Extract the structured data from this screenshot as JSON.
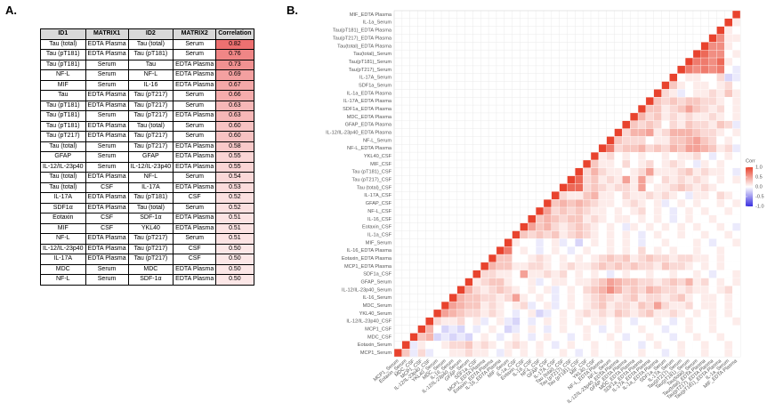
{
  "panel_a": {
    "panel_label": "A.",
    "table": {
      "header": [
        "ID1",
        "MATRIX1",
        "ID2",
        "MATRIX2",
        "Correlation"
      ],
      "rows": [
        [
          "Tau (total)",
          "EDTA Plasma",
          "Tau (total)",
          "Serum",
          "0.82"
        ],
        [
          "Tau (pT181)",
          "EDTA Plasma",
          "Tau (pT181)",
          "Serum",
          "0.76"
        ],
        [
          "Tau (pT181)",
          "Serum",
          "Tau",
          "EDTA Plasma",
          "0.73"
        ],
        [
          "NF-L",
          "Serum",
          "NF-L",
          "EDTA Plasma",
          "0.69"
        ],
        [
          "MIF",
          "Serum",
          "IL-16",
          "EDTA Plasma",
          "0.67"
        ],
        [
          "Tau",
          "EDTA Plasma",
          "Tau (pT217)",
          "Serum",
          "0.66"
        ],
        [
          "Tau (pT181)",
          "EDTA Plasma",
          "Tau (pT217)",
          "Serum",
          "0.63"
        ],
        [
          "Tau (pT181)",
          "Serum",
          "Tau (pT217)",
          "EDTA Plasma",
          "0.63"
        ],
        [
          "Tau (pT181)",
          "EDTA Plasma",
          "Tau (total)",
          "Serum",
          "0.60"
        ],
        [
          "Tau (pT217)",
          "EDTA Plasma",
          "Tau (pT217)",
          "Serum",
          "0.60"
        ],
        [
          "Tau (total)",
          "Serum",
          "Tau (pT217)",
          "EDTA Plasma",
          "0.58"
        ],
        [
          "GFAP",
          "Serum",
          "GFAP",
          "EDTA Plasma",
          "0.55"
        ],
        [
          "IL-12/IL-23p40",
          "Serum",
          "IL-12/IL-23p40",
          "EDTA Plasma",
          "0.55"
        ],
        [
          "Tau (total)",
          "EDTA Plasma",
          "NF-L",
          "Serum",
          "0.54"
        ],
        [
          "Tau (total)",
          "CSF",
          "IL-17A",
          "EDTA Plasma",
          "0.53"
        ],
        [
          "IL-17A",
          "EDTA Plasma",
          "Tau (pT181)",
          "CSF",
          "0.52"
        ],
        [
          "SDF1α",
          "EDTA Plasma",
          "Tau (total)",
          "Serum",
          "0.52"
        ],
        [
          "Eotaxin",
          "CSF",
          "SDF-1α",
          "EDTA Plasma",
          "0.51"
        ],
        [
          "MIF",
          "CSF",
          "YKL40",
          "EDTA Plasma",
          "0.51"
        ],
        [
          "NF-L",
          "EDTA Plasma",
          "Tau (pT217)",
          "Serum",
          "0.51"
        ],
        [
          "IL-12/IL-23p40",
          "EDTA Plasma",
          "Tau (pT217)",
          "CSF",
          "0.50"
        ],
        [
          "IL-17A",
          "EDTA Plasma",
          "Tau (pT217)",
          "CSF",
          "0.50"
        ],
        [
          "MDC",
          "Serum",
          "MDC",
          "EDTA Plasma",
          "0.50"
        ],
        [
          "NF-L",
          "Serum",
          "SDF-1α",
          "EDTA Plasma",
          "0.50"
        ]
      ]
    }
  },
  "chart_data": {
    "type": "heatmap",
    "panel_label": "B.",
    "legend_title": "Corr",
    "clim": [
      -1,
      1
    ],
    "legend_ticks": [
      {
        "value": 1,
        "label": "1.0"
      },
      {
        "value": 0.5,
        "label": "0.5"
      },
      {
        "value": 0,
        "label": "0.0"
      },
      {
        "value": -0.5,
        "label": "-0.5"
      },
      {
        "value": -1,
        "label": "-1.0"
      }
    ],
    "labels": [
      "MIF_EDTA Plasma",
      "IL-1a_Serum",
      "Tau(pT181)_EDTA Plasma",
      "Tau(pT217)_EDTA Plasma",
      "Tau(total)_EDTA Plasma",
      "Tau(total)_Serum",
      "Tau(pT181)_Serum",
      "Tau(pT217)_Serum",
      "IL-17A_Serum",
      "SDF1a_Serum",
      "IL-1a_EDTA Plasma",
      "IL-17A_EDTA Plasma",
      "SDF1a_EDTA Plasma",
      "MDC_EDTA Plasma",
      "GFAP_EDTA Plasma",
      "IL-12/IL-23p40_EDTA Plasma",
      "NF-L_Serum",
      "NF-L_EDTA Plasma",
      "YKL40_CSF",
      "MIF_CSF",
      "Tau (pT181)_CSF",
      "Tau (pT217)_CSF",
      "Tau (total)_CSF",
      "IL-17A_CSF",
      "GFAP_CSF",
      "NF-L_CSF",
      "IL-16_CSF",
      "Eotaxin_CSF",
      "IL-1a_CSF",
      "MIF_Serum",
      "IL-16_EDTA Plasma",
      "Eotaxin_EDTA Plasma",
      "MCP1_EDTA Plasma",
      "SDF1a_CSF",
      "GFAP_Serum",
      "IL-12/IL-23p40_Serum",
      "IL-16_Serum",
      "MDC_Serum",
      "YKL40_Serum",
      "IL-12/IL-23p40_CSF",
      "MCP1_CSF",
      "MDC_CSF",
      "Eotaxin_Serum",
      "MCP1_Serum"
    ],
    "matrix": [
      [
        1
      ],
      [
        1,
        0.1
      ],
      [
        1,
        0.1,
        0
      ],
      [
        1,
        0.6,
        0.1,
        0.1
      ],
      [
        1,
        0.6,
        0.6,
        0.1,
        0
      ],
      [
        1,
        0.8,
        0.6,
        0.6,
        0,
        0.1
      ],
      [
        1,
        0.7,
        0.7,
        0.6,
        0.8,
        0.1,
        0
      ],
      [
        1,
        0.7,
        0.6,
        0.7,
        0.6,
        0.7,
        0,
        -0.1
      ],
      [
        1,
        0,
        0.1,
        0.1,
        0,
        0,
        0.2,
        -0.2,
        -0.1
      ],
      [
        1,
        0.3,
        0.1,
        0,
        0.1,
        0.1,
        0,
        0.1,
        0.2,
        0
      ],
      [
        1,
        0.2,
        0.1,
        -0.1,
        0,
        0.1,
        0.1,
        0.2,
        0.1,
        0.3,
        0.1
      ],
      [
        1,
        0.3,
        0.2,
        0.3,
        0.2,
        0.3,
        0.3,
        0.2,
        0.2,
        0.1,
        0,
        0.1
      ],
      [
        1,
        0.3,
        0.3,
        0.1,
        0.2,
        0.3,
        0.5,
        0.3,
        0.2,
        0.1,
        0.2,
        0,
        0.1
      ],
      [
        1,
        0.4,
        0.2,
        0.3,
        0.1,
        0.2,
        0.1,
        0.2,
        0.1,
        0.1,
        0.2,
        0.1,
        0,
        0.1
      ],
      [
        1,
        0.3,
        0.2,
        0.3,
        0.2,
        0,
        0.2,
        0.1,
        0.3,
        0.2,
        0.2,
        0.1,
        0.3,
        0.2,
        -0.1
      ],
      [
        1,
        0.2,
        0.4,
        0.4,
        0.5,
        0.1,
        0.2,
        0.4,
        0.4,
        0.4,
        0.3,
        0.2,
        0.2,
        0.1,
        0,
        0.1
      ],
      [
        1,
        0.3,
        0.2,
        0.2,
        0.2,
        0,
        0.1,
        0.1,
        0.3,
        0.3,
        0.4,
        0.5,
        0.3,
        0.2,
        0,
        0.1,
        0
      ],
      [
        1,
        0.7,
        0.2,
        0.3,
        0.3,
        0.4,
        0.2,
        0.3,
        0.2,
        0.4,
        0.3,
        0.5,
        0.5,
        0.4,
        0.3,
        0.1,
        0.2,
        -0.1
      ],
      [
        1,
        0.1,
        0.2,
        0,
        0.1,
        0,
        0.1,
        0,
        0,
        0.1,
        0,
        0.1,
        0.1,
        0.2,
        0,
        -0.1,
        0,
        0.1,
        0
      ],
      [
        1,
        0.3,
        0.1,
        0.1,
        0,
        0.2,
        0,
        0.1,
        0.2,
        0,
        0.1,
        0.2,
        0.1,
        0,
        -0.1,
        0.1,
        0,
        0.1,
        0,
        0
      ],
      [
        1,
        0.2,
        0.4,
        0.2,
        0.1,
        0.1,
        0,
        0.1,
        0.2,
        0.5,
        0.1,
        0.1,
        0.1,
        0.2,
        0.3,
        0.1,
        0.2,
        0.1,
        0.1,
        0,
        -0.1
      ],
      [
        1,
        0.8,
        0.2,
        0.3,
        0.1,
        0.2,
        0.1,
        0.5,
        0.1,
        0.5,
        0.1,
        0,
        0.2,
        0.1,
        0.2,
        0.1,
        0.2,
        0.1,
        0,
        0.1,
        0,
        0.1
      ],
      [
        1,
        0.8,
        0.8,
        0.2,
        0.3,
        0.2,
        0.1,
        0.2,
        0.2,
        0.1,
        0.5,
        0,
        0.1,
        0.1,
        0.2,
        0.3,
        0.2,
        0.1,
        0.2,
        0.1,
        0,
        0,
        0
      ],
      [
        1,
        0.2,
        0.1,
        0.1,
        0.3,
        0.4,
        0.1,
        0.1,
        0,
        0.2,
        0.1,
        0.1,
        0.2,
        0.1,
        0.2,
        0.1,
        0,
        -0.1,
        0.1,
        0.1,
        0,
        0.2,
        0.1,
        0
      ],
      [
        1,
        0.3,
        0.4,
        0.3,
        0.4,
        0.3,
        0.2,
        0.1,
        0.1,
        0,
        0.1,
        0.2,
        0.1,
        0,
        0.1,
        -0.1,
        0,
        0.1,
        0,
        0.1,
        0,
        0,
        0.1,
        0,
        0.1
      ],
      [
        1,
        0.5,
        0.2,
        0.3,
        0.2,
        0.3,
        0.2,
        0.1,
        0.1,
        0,
        0.1,
        0,
        0.1,
        0.2,
        0,
        0.1,
        0,
        -0.1,
        0,
        0.1,
        0,
        0.1,
        0,
        0,
        0.1,
        0
      ],
      [
        1,
        0.3,
        0.4,
        0.3,
        0.2,
        0.3,
        0.3,
        0.1,
        0.2,
        0.1,
        0,
        0.1,
        0.1,
        0,
        0.1,
        0,
        0.1,
        0,
        -0.1,
        0,
        0.1,
        0,
        0,
        0.1,
        0,
        0,
        0
      ],
      [
        1,
        0.5,
        0.3,
        0.4,
        0.2,
        0.1,
        0.2,
        0.3,
        0.2,
        0.1,
        0,
        0.1,
        0,
        -0.1,
        0.1,
        0,
        0.1,
        0,
        0.1,
        0,
        0.1,
        0,
        0.1,
        0,
        0,
        0.1,
        0,
        -0.1
      ],
      [
        1,
        0.3,
        0.2,
        0.3,
        0.2,
        0.3,
        0.1,
        0.2,
        0.3,
        0.2,
        0.1,
        0,
        0.1,
        0,
        0.1,
        0,
        -0.1,
        0,
        0.1,
        0,
        0,
        0.1,
        0,
        0,
        0.1,
        0,
        0,
        0.1,
        0
      ],
      [
        1,
        0.1,
        0,
        0,
        -0.1,
        0,
        0.1,
        -0.1,
        0,
        -0.2,
        0,
        0.1,
        0,
        0.1,
        0,
        0.1,
        0,
        -0.1,
        0,
        0,
        0.1,
        0,
        0,
        0,
        0.1,
        0,
        -0.1,
        0,
        0,
        0.1
      ],
      [
        1,
        0.7,
        0,
        0.1,
        0,
        -0.1,
        0,
        0.1,
        0,
        -0.1,
        0,
        0.1,
        0,
        0,
        0.1,
        0,
        0.1,
        0,
        0.2,
        0,
        0.1,
        0,
        0.1,
        0,
        0,
        0.1,
        0,
        0,
        0.1,
        0,
        0
      ],
      [
        1,
        0.3,
        0.3,
        0,
        0,
        0.1,
        0.2,
        0.1,
        0,
        0.1,
        0,
        0.1,
        0,
        0.1,
        0.2,
        0.3,
        0.2,
        0.3,
        0.1,
        0.2,
        0.3,
        0.2,
        0.2,
        0.1,
        0.2,
        0.2,
        0.1,
        0.1,
        0,
        0.1,
        0,
        0
      ],
      [
        1,
        0.4,
        0.3,
        0.3,
        0.1,
        0.1,
        0.2,
        0.2,
        0.1,
        0,
        0.1,
        0.2,
        0.1,
        0.1,
        0.2,
        0.3,
        0.2,
        0.3,
        0.2,
        0.3,
        0.2,
        0.2,
        0.1,
        0.3,
        0.2,
        0.2,
        0.1,
        0,
        0.1,
        0,
        0.1,
        0,
        0
      ],
      [
        1,
        0.2,
        0.2,
        0.1,
        0.1,
        0,
        0.5,
        0.1,
        0.1,
        0.2,
        0.1,
        0.2,
        0,
        0.1,
        0,
        0.1,
        0,
        -0.1,
        0,
        0.1,
        0,
        0,
        0.1,
        0,
        0,
        0.1,
        0,
        0,
        0.1,
        0,
        -0.1,
        0,
        0,
        0.1
      ],
      [
        1,
        0.1,
        0.2,
        0.3,
        0.3,
        0.1,
        0,
        0,
        0.1,
        -0.1,
        0,
        0.1,
        0.1,
        0,
        0.1,
        0.1,
        0.2,
        0.3,
        0.5,
        0.4,
        0.3,
        0.3,
        0.2,
        0.2,
        0.1,
        0.2,
        0.3,
        0.2,
        0.4,
        0.1,
        0.2,
        0,
        0.1,
        0,
        0.1
      ],
      [
        1,
        0.4,
        0.2,
        0.1,
        0.2,
        0.3,
        0.2,
        0.1,
        0,
        0.1,
        0,
        0.1,
        -0.1,
        0,
        0.1,
        0,
        0.2,
        0.3,
        0.4,
        0.6,
        0.4,
        0.2,
        0.3,
        0.2,
        0.4,
        0.3,
        0.2,
        0.2,
        0.1,
        0.2,
        0.1,
        0.1,
        0,
        0.1,
        0.2,
        0
      ],
      [
        1,
        0.4,
        0.3,
        0.3,
        0.2,
        0.2,
        0.1,
        0.2,
        0.5,
        0.1,
        0,
        0.1,
        0,
        -0.1,
        0,
        0.1,
        0,
        0.1,
        0.2,
        0.3,
        0.2,
        0.1,
        0.2,
        0.3,
        0.1,
        0.2,
        0.2,
        0.1,
        0.2,
        0.3,
        0.1,
        0,
        0.1,
        0.1,
        0,
        0.1,
        0
      ],
      [
        1,
        0.5,
        0.4,
        0.3,
        0.3,
        0.1,
        0.2,
        0.1,
        0,
        0.1,
        0.2,
        -0.1,
        0,
        0.1,
        -0.1,
        0,
        0.1,
        0,
        0.1,
        0.2,
        0.3,
        0.1,
        0.2,
        0.2,
        0.1,
        0.3,
        0.2,
        0.5,
        0.2,
        0.1,
        0.1,
        0.2,
        0,
        0.1,
        0.1,
        0,
        0.1,
        0
      ],
      [
        1,
        0.5,
        0.4,
        0.3,
        0.2,
        0.2,
        0.1,
        0.2,
        0.1,
        0,
        -0.1,
        0,
        0.1,
        -0.2,
        -0.1,
        0,
        0.1,
        0,
        0.1,
        0.2,
        0.1,
        0.2,
        0.1,
        0.3,
        0.2,
        0.1,
        0.2,
        0.3,
        0.1,
        0.1,
        0.2,
        0.1,
        0,
        0.1,
        0,
        0.1,
        0,
        0.1,
        0
      ],
      [
        1,
        0.2,
        0.1,
        0.1,
        0.2,
        0,
        0.1,
        -0.1,
        0,
        0.1,
        -0.1,
        -0.2,
        0,
        -0.1,
        0,
        0.1,
        0,
        0.1,
        0,
        0.1,
        0,
        0.1,
        0.1,
        0,
        0.1,
        0,
        -0.1,
        0,
        0,
        0.1,
        0,
        -0.1,
        0,
        0.1,
        0,
        0,
        0.1,
        0,
        0,
        0.1
      ],
      [
        1,
        0.4,
        0,
        -0.2,
        -0.1,
        -0.2,
        0,
        -0.1,
        0,
        0.1,
        0,
        -0.2,
        -0.1,
        0,
        0.1,
        0,
        -0.1,
        0,
        0.1,
        0,
        0,
        0.1,
        0,
        -0.1,
        0,
        0.1,
        0,
        0,
        0.1,
        0,
        0,
        -0.1,
        0,
        0,
        0.1,
        0,
        0,
        0.1,
        0,
        0,
        0
      ],
      [
        1,
        0.3,
        0.4,
        -0.2,
        -0.1,
        -0.2,
        -0.1,
        -0.2,
        0,
        0.1,
        0,
        -0.1,
        0,
        0.1,
        0,
        -0.1,
        0,
        0.1,
        0,
        0,
        -0.1,
        0,
        0.1,
        0,
        0,
        0.1,
        0,
        -0.1,
        0,
        0,
        0.1,
        0,
        0,
        -0.1,
        0,
        0,
        0.1,
        0,
        0,
        0.1,
        0,
        0
      ],
      [
        1,
        -0.1,
        0.1,
        0,
        0,
        0.1,
        0.2,
        0.2,
        0.3,
        0.1,
        0.2,
        0.1,
        0,
        0.1,
        0.2,
        0.1,
        0,
        0.1,
        0,
        -0.1,
        0,
        0.1,
        0,
        0,
        0.1,
        0,
        0,
        0.1,
        0,
        0,
        -0.1,
        0,
        0.1,
        0,
        0,
        0.1,
        0,
        0,
        0.1,
        0,
        0,
        0.1,
        0
      ],
      [
        1,
        0.3,
        -0.1,
        0.2,
        -0.1,
        0,
        0,
        0.1,
        0.1,
        0.2,
        0.1,
        0.1,
        0,
        -0.1,
        0.1,
        0,
        0.1,
        0,
        0.1,
        0,
        0,
        0.1,
        0,
        -0.1,
        0,
        0.1,
        0,
        0,
        0.1,
        0,
        0,
        0.1,
        0,
        0,
        -0.1,
        0,
        0.1,
        0,
        0,
        0.1,
        0,
        0,
        0.1,
        0
      ]
    ]
  }
}
